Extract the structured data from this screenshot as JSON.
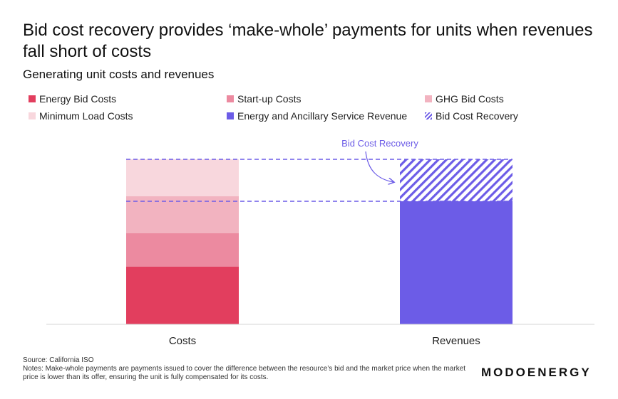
{
  "title": "Bid cost recovery provides ‘make-whole’ payments for units when revenues fall short of costs",
  "subtitle": "Generating unit costs and revenues",
  "source": "Source: California ISO",
  "notes": "Notes:  Make-whole payments are payments issued to cover the difference between the resource’s bid and the market price when the market price is lower than its offer, ensuring the unit is fully compensated for its costs.",
  "logo": "MODOENERGY",
  "annotation": "Bid Cost Recovery",
  "legend": [
    {
      "label": "Energy Bid Costs",
      "color": "#e23e5e"
    },
    {
      "label": "Start-up Costs",
      "color": "#ec8aa0"
    },
    {
      "label": "GHG Bid Costs",
      "color": "#f2b3c0"
    },
    {
      "label": "Minimum Load Costs",
      "color": "#f8d7dd"
    },
    {
      "label": "Energy and Ancillary Service Revenue",
      "color": "#6c5ce7"
    },
    {
      "label": "Bid Cost Recovery",
      "color": "#6c5ce7",
      "pattern": "hatch"
    }
  ],
  "chart_data": {
    "type": "bar",
    "stacked": true,
    "categories": [
      "Costs",
      "Revenues"
    ],
    "series": [
      {
        "name": "Energy Bid Costs",
        "values": [
          81,
          0
        ],
        "color": "#e23e5e"
      },
      {
        "name": "Start-up Costs",
        "values": [
          47,
          0
        ],
        "color": "#ec8aa0"
      },
      {
        "name": "GHG Bid Costs",
        "values": [
          52,
          0
        ],
        "color": "#f2b3c0"
      },
      {
        "name": "Minimum Load Costs",
        "values": [
          52,
          0
        ],
        "color": "#f8d7dd"
      },
      {
        "name": "Energy and Ancillary Service Revenue",
        "values": [
          0,
          173
        ],
        "color": "#6c5ce7"
      },
      {
        "name": "Bid Cost Recovery",
        "values": [
          0,
          59
        ],
        "color": "#6c5ce7",
        "pattern": "hatch"
      }
    ],
    "ylim": [
      0,
      232
    ],
    "grid": false,
    "reference_lines": [
      232,
      173
    ],
    "legend_position": "top"
  }
}
